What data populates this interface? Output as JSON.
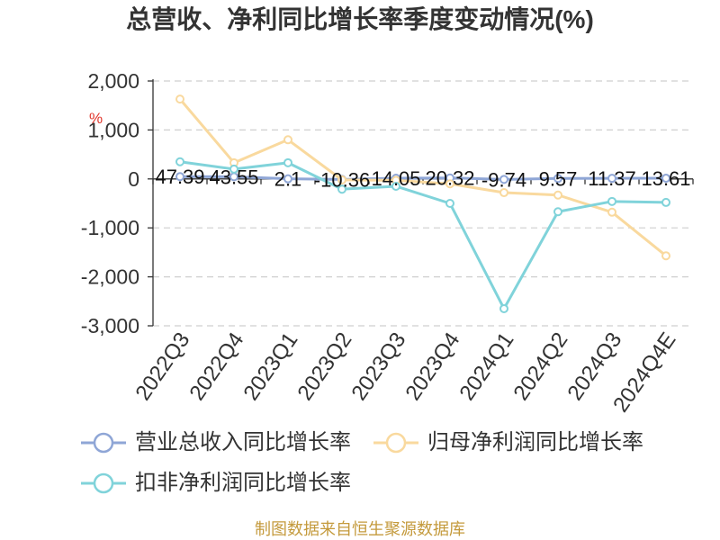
{
  "source": "制图数据来自恒生聚源数据库",
  "chart_data": {
    "type": "line",
    "title": "总营收、净利同比增长率季度变动情况(%)",
    "ylabel": "%",
    "ylim": [
      -3000,
      2000
    ],
    "y_ticks": [
      2000,
      1000,
      0,
      -1000,
      -2000,
      -3000
    ],
    "y_tick_labels": [
      "2,000",
      "1,000",
      "0",
      "-1,000",
      "-2,000",
      "-3,000"
    ],
    "grid": true,
    "legend": "bottom",
    "categories": [
      "2022Q3",
      "2022Q4",
      "2023Q1",
      "2023Q2",
      "2023Q3",
      "2023Q4",
      "2024Q1",
      "2024Q2",
      "2024Q3",
      "2024Q4E"
    ],
    "series": [
      {
        "name": "营业总收入同比增长率",
        "color": "#8fa6d6",
        "show_labels": true,
        "values": [
          47.39,
          43.55,
          2.1,
          -10.36,
          14.05,
          20.32,
          -9.74,
          9.57,
          11.37,
          13.61
        ]
      },
      {
        "name": "归母净利润同比增长率",
        "color": "#f9d99e",
        "show_labels": false,
        "values": [
          1630,
          330,
          800,
          -20,
          -30,
          -100,
          -280,
          -330,
          -680,
          -1570
        ]
      },
      {
        "name": "扣非净利润同比增长率",
        "color": "#80d3da",
        "show_labels": false,
        "values": [
          350,
          200,
          330,
          -210,
          -150,
          -500,
          -2650,
          -670,
          -460,
          -480
        ]
      }
    ]
  }
}
